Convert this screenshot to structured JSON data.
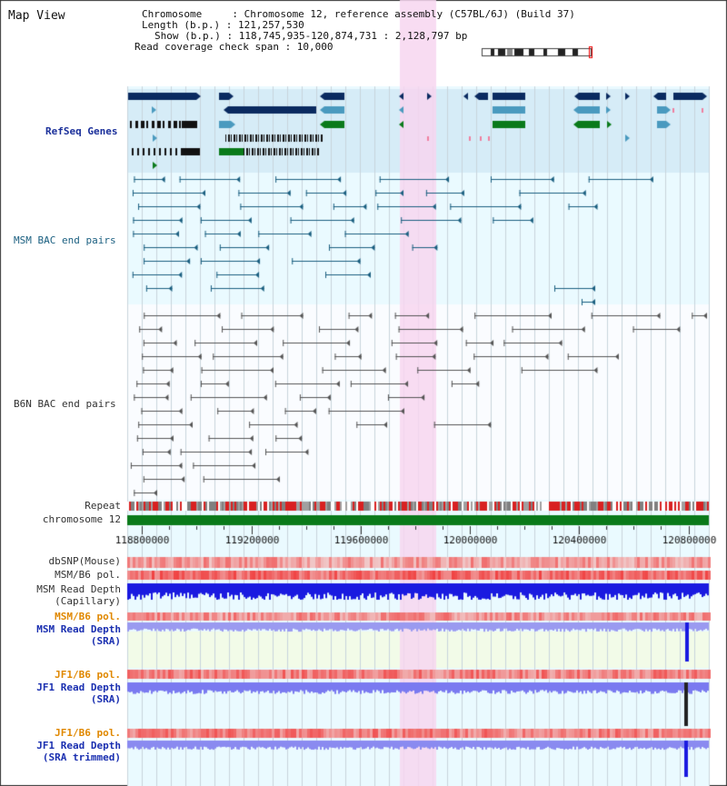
{
  "view_title": "Map View",
  "header_info": {
    "chromosome_line": "Chromosome     : Chromosome 12, reference assembly (C57BL/6J) (Build 37)",
    "length_line": "Length (b.p.) : 121,257,530",
    "show_line": "Show (b.p.) : 118,745,935-120,874,731 : 2,128,797 bp",
    "coverage_line": "Read coverage check span : 10,000"
  },
  "track_labels": {
    "refseq": "RefSeq Genes",
    "msm_bac": "MSM BAC end pairs",
    "b6n_bac": "B6N BAC end pairs",
    "repeat": "Repeat",
    "chromosome": "chromosome 12",
    "dbsnp": "dbSNP(Mouse)",
    "msm_b6_pol_1": "MSM/B6 pol.",
    "msm_read_depth_cap": "MSM Read Depth",
    "msm_read_depth_cap_sub": "(Capillary)",
    "msm_b6_pol_2": "MSM/B6 pol.",
    "msm_read_depth_sra": "MSM Read Depth",
    "msm_read_depth_sra_sub": "(SRA)",
    "jf1_b6_pol_1": "JF1/B6 pol.",
    "jf1_read_depth_sra": "JF1 Read Depth",
    "jf1_read_depth_sra_sub": "(SRA)",
    "jf1_b6_pol_2": "JF1/B6 pol.",
    "jf1_read_depth_trim": "JF1 Read Depth",
    "jf1_read_depth_trim_sub": "(SRA trimmed)"
  },
  "axis_ticks": [
    "118800000",
    "119200000",
    "119600000",
    "120000000",
    "120400000",
    "120800000"
  ],
  "view_range": {
    "start": 118745935,
    "end": 120874731
  },
  "highlight_region": {
    "start": 119700000,
    "end": 119830000
  },
  "colors": {
    "highlight": "#f7d6f0",
    "refseq_bg": "#d6ecf7",
    "data_bg": "#eafaff",
    "gene_navy": "#0a2a60",
    "gene_mid": "#4a9abf",
    "gene_green": "#0a7a1a",
    "bac_teal": "#1a5f80",
    "bac_gray": "#555555",
    "chromosome_bar": "#0a7a1a",
    "pol_red": "#e84040",
    "depth_blue": "#2a2ae0",
    "depth_light": "#7a7af0"
  }
}
